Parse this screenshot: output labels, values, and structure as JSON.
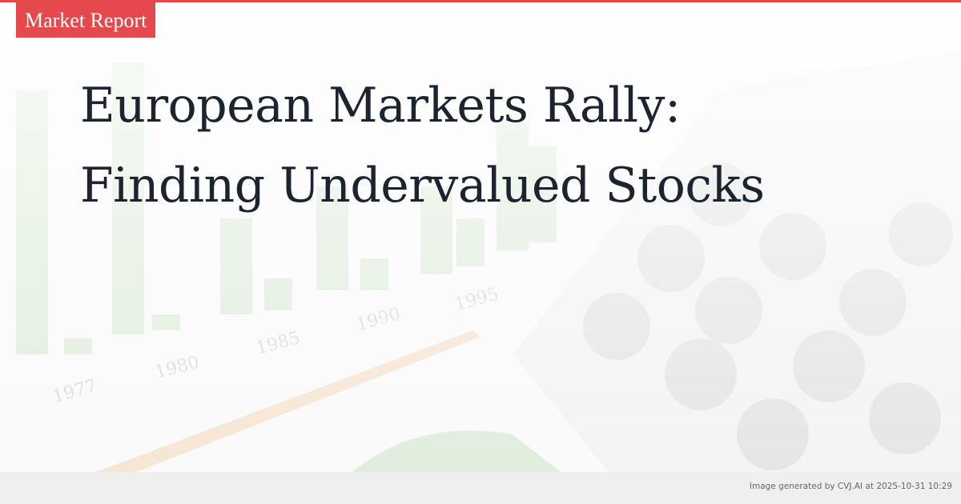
{
  "badge": {
    "label": "Market Report"
  },
  "headline": {
    "line1": "European Markets Rally:",
    "line2": "Finding Undervalued Stocks"
  },
  "footer": {
    "credit": "Image generated by CVJ.AI at 2025-10-31 10:29"
  },
  "colors": {
    "accent": "#e5484d",
    "title": "#1c2430",
    "footer_bg": "#efefef"
  },
  "background": {
    "year_labels": [
      "1977",
      "1980",
      "1985",
      "1990",
      "1995"
    ]
  }
}
